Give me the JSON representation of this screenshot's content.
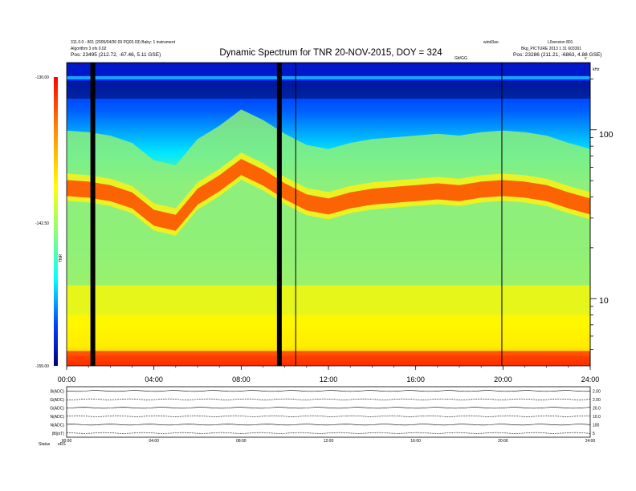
{
  "header": {
    "title": "Dynamic Spectrum for TNR 20-NOV-2015, DOY = 324",
    "left_line1": "311.0.0 - 801 (2005/04/30 09 PQ03.03) Baby: 1 instrument",
    "left_line2": "Algorithm 3 ofs 0.02",
    "left_line3": "Pos:    23495 (212.72, -67.46, 5.11 GSE)",
    "right_line1": "wind3ao",
    "right_line2": "L0version 801",
    "right_line3": "Bkg_PICTURE 2013 1 31 603301",
    "right_line4": "Pos:  23286 (211.21, -6863, 4.88 GSE)",
    "top_right_small": "Gtt/GG",
    "corner_v": "v",
    "corner_label": "kHz"
  },
  "chart_data": [
    {
      "type": "heatmap",
      "title": "Dynamic Spectrum for TNR 20-NOV-2015, DOY = 324",
      "x_ticks": [
        "00:00",
        "04:00",
        "08:00",
        "12:00",
        "16:00",
        "20:00",
        "24:00"
      ],
      "x_range_hours": [
        0,
        24
      ],
      "y_axis_right": {
        "scale": "log",
        "ticks": [
          "100",
          "10"
        ],
        "tick_values": [
          100,
          10
        ],
        "range_khz": [
          4,
          250
        ],
        "unit": "kHz"
      },
      "colorbar": {
        "min": -155.0,
        "mid": -142.5,
        "max": -130.0,
        "tick_labels": [
          "-130.00",
          "-142.50",
          "-155.00"
        ],
        "label": "TNR"
      },
      "data_gaps_hours": [
        1.2,
        9.75
      ],
      "spectral_lines_hours": [
        10.5,
        19.95
      ],
      "emission_band": {
        "description_levels": "cyan/blue above, yellow-green plasma line band near 40-60 kHz, yellow below, red at lowest frequencies",
        "band_center_khz": [
          45,
          44,
          42,
          38,
          30,
          28,
          40,
          48,
          60,
          52,
          43,
          37,
          35,
          38,
          40,
          41,
          42,
          43,
          42,
          44,
          45,
          44,
          42,
          38,
          35
        ]
      }
    },
    {
      "type": "line",
      "panels": [
        {
          "label": "B(ADC)",
          "right_scale": "2.00"
        },
        {
          "label": "G(ADC)",
          "right_scale": "2.00"
        },
        {
          "label": "G(ADC)",
          "right_scale": "20.0"
        },
        {
          "label": "N(ADC)",
          "right_scale": "10.0"
        },
        {
          "label": "N(ADC)",
          "right_scale": "100"
        },
        {
          "label": "|B|(nT)",
          "right_scale": "5"
        }
      ],
      "x_ticks": [
        "00:00",
        "04:00",
        "08:00",
        "12:00",
        "16:00",
        "20:00",
        "24:00"
      ],
      "bottom_label_left": "Status",
      "bottom_label_code": "eRS"
    }
  ],
  "colors": {
    "low": "#00008a",
    "blue": "#0030ff",
    "cyan": "#00e8ff",
    "green": "#7ff07f",
    "yellow": "#fff700",
    "orange": "#ff9d00",
    "red": "#ff2a00",
    "dark_red": "#b40000"
  }
}
